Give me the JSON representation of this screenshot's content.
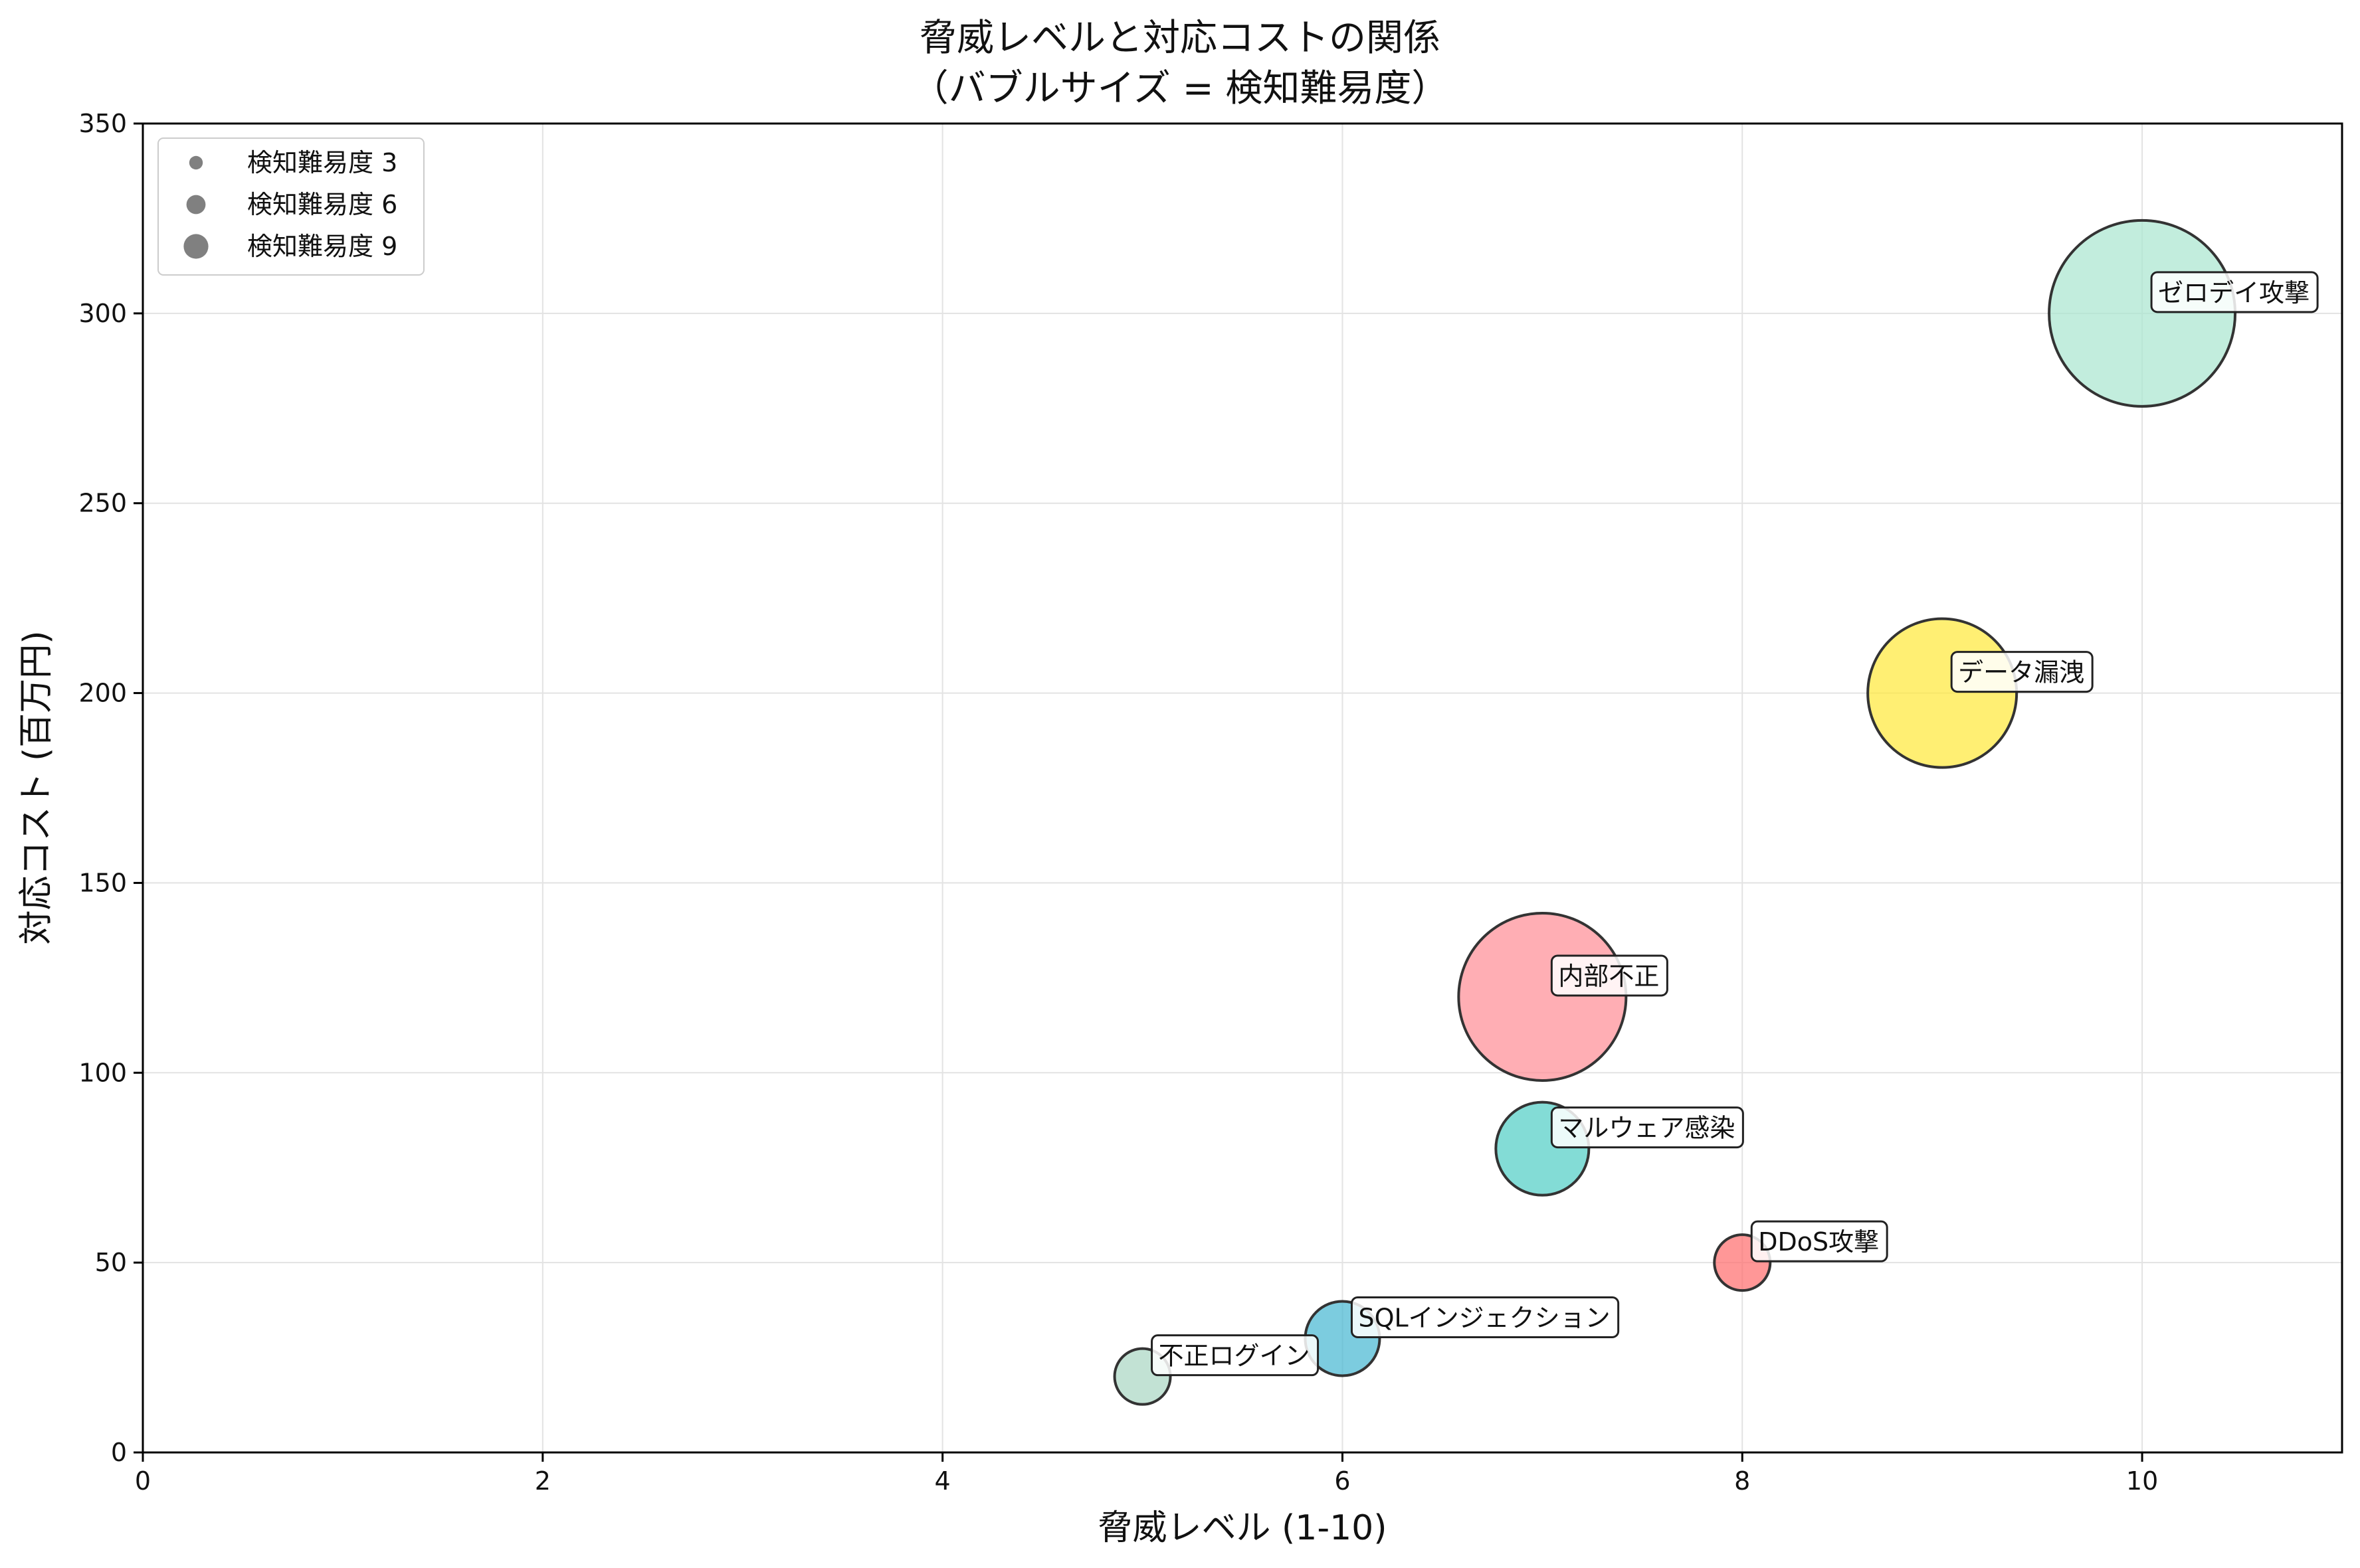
{
  "chart_data": {
    "type": "scatter",
    "variant": "bubble",
    "title_line1": "脅威レベルと対応コストの関係",
    "title_line2": "（バブルサイズ = 検知難易度）",
    "xlabel": "脅威レベル (1-10)",
    "ylabel": "対応コスト (百万円)",
    "xlim": [
      0,
      11
    ],
    "ylim": [
      0,
      350
    ],
    "xticks": [
      0,
      2,
      4,
      6,
      8,
      10
    ],
    "yticks": [
      0,
      50,
      100,
      150,
      200,
      250,
      300,
      350
    ],
    "grid": true,
    "legend_position": "top-left",
    "legend": [
      {
        "label": "検知難易度 3",
        "size": 3
      },
      {
        "label": "検知難易度 6",
        "size": 6
      },
      {
        "label": "検知難易度 9",
        "size": 9
      }
    ],
    "points": [
      {
        "label": "不正ログイン",
        "x": 5,
        "y": 20,
        "size": 3,
        "color": "#a8d5c2"
      },
      {
        "label": "SQLインジェクション",
        "x": 6,
        "y": 30,
        "size": 4,
        "color": "#45b7d1"
      },
      {
        "label": "DDoS攻撃",
        "x": 8,
        "y": 50,
        "size": 3,
        "color": "#ff6b6b"
      },
      {
        "label": "マルウェア感染",
        "x": 7,
        "y": 80,
        "size": 5,
        "color": "#4ecdc4"
      },
      {
        "label": "内部不正",
        "x": 7,
        "y": 120,
        "size": 9,
        "color": "#ff8c94"
      },
      {
        "label": "データ漏洩",
        "x": 9,
        "y": 200,
        "size": 8,
        "color": "#ffe838"
      },
      {
        "label": "ゼロデイ攻撃",
        "x": 10,
        "y": 300,
        "size": 10,
        "color": "#a8e6cf"
      }
    ]
  }
}
